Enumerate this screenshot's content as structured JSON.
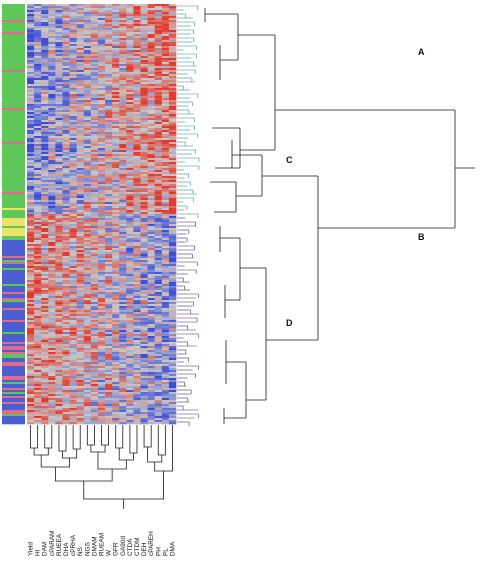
{
  "cluster_labels": {
    "a": "A",
    "b": "B",
    "c": "C",
    "d": "D"
  },
  "columns": [
    "Yield",
    "HI",
    "DAM",
    "cPARAM",
    "RUEEA",
    "DHA",
    "cPRHA",
    "NS",
    "NGS",
    "DMAM",
    "RUEAM",
    "W",
    "GFR",
    "GA90d",
    "CTDA",
    "CTDM",
    "DEH",
    "cPAREH",
    "PH",
    "PL",
    "DMA"
  ],
  "colors": {
    "heat_low": "#3b4cd6",
    "heat_mid": "#c9c9c9",
    "heat_high": "#e23a2e",
    "tree_line": "#1a1a1a",
    "teal_branch": "#2e8f8c",
    "purple_branch": "#4a2f6e",
    "group_green": "#5fc75a",
    "group_yellow": "#ece46a",
    "group_blue": "#4c5fd0",
    "group_pink": "#e06b8c"
  }
}
